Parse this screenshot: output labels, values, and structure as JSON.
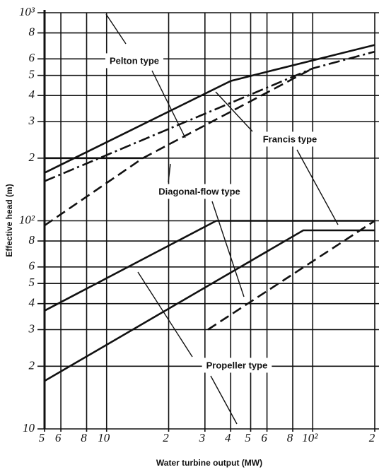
{
  "chart_data": {
    "type": "line",
    "xlabel": "Water turbine output (MW)",
    "ylabel": "Effective head (m)",
    "xscale": "log",
    "yscale": "log",
    "xlim": [
      5,
      200
    ],
    "ylim": [
      10,
      1000
    ],
    "xticks": [
      5,
      6,
      8,
      10,
      {
        "value": 20,
        "label": "2"
      },
      {
        "value": 30,
        "label": "3"
      },
      {
        "value": 40,
        "label": "4"
      },
      {
        "value": 50,
        "label": "5"
      },
      {
        "value": 60,
        "label": "6"
      },
      {
        "value": 80,
        "label": "8"
      },
      {
        "value": 100,
        "label": "10²"
      },
      {
        "value": 200,
        "label": "2"
      }
    ],
    "yticks": [
      {
        "value": 1000,
        "label": "10³"
      },
      {
        "value": 800,
        "label": "8"
      },
      {
        "value": 600,
        "label": "6"
      },
      {
        "value": 500,
        "label": "5"
      },
      {
        "value": 400,
        "label": "4"
      },
      {
        "value": 300,
        "label": "3"
      },
      {
        "value": 200,
        "label": "2"
      },
      {
        "value": 100,
        "label": "10²"
      },
      {
        "value": 80,
        "label": "8"
      },
      {
        "value": 60,
        "label": "6"
      },
      {
        "value": 50,
        "label": "5"
      },
      {
        "value": 40,
        "label": "4"
      },
      {
        "value": 30,
        "label": "3"
      },
      {
        "value": 20,
        "label": "2"
      },
      10
    ],
    "grid": true,
    "annotations": [
      "Pelton type",
      "Francis type",
      "Diagonal-flow type",
      "Propeller type"
    ],
    "series": [
      {
        "color": "#111111",
        "dash": "solid",
        "x": [
          5,
          40,
          60,
          200
        ],
        "values": [
          170,
          470,
          520,
          700
        ]
      },
      {
        "color": "#111111",
        "dash": "dashdot",
        "x": [
          5,
          100,
          200
        ],
        "values": [
          155,
          540,
          650
        ]
      },
      {
        "color": "#111111",
        "dash": "solid",
        "x": [
          5,
          15
        ],
        "values": [
          200,
          200
        ]
      },
      {
        "color": "#111111",
        "dash": "dashed",
        "x": [
          15,
          100
        ],
        "values": [
          200,
          540
        ]
      },
      {
        "color": "#111111",
        "dash": "dashed",
        "x": [
          5,
          15
        ],
        "values": [
          95,
          200
        ]
      },
      {
        "color": "#111111",
        "dash": "solid",
        "x": [
          5,
          34,
          200
        ],
        "values": [
          37,
          100,
          100
        ]
      },
      {
        "color": "#111111",
        "dash": "solid",
        "x": [
          5,
          90,
          200
        ],
        "values": [
          17,
          90,
          90
        ]
      },
      {
        "color": "#111111",
        "dash": "dashed",
        "x": [
          31,
          200
        ],
        "values": [
          30,
          100
        ]
      }
    ]
  }
}
